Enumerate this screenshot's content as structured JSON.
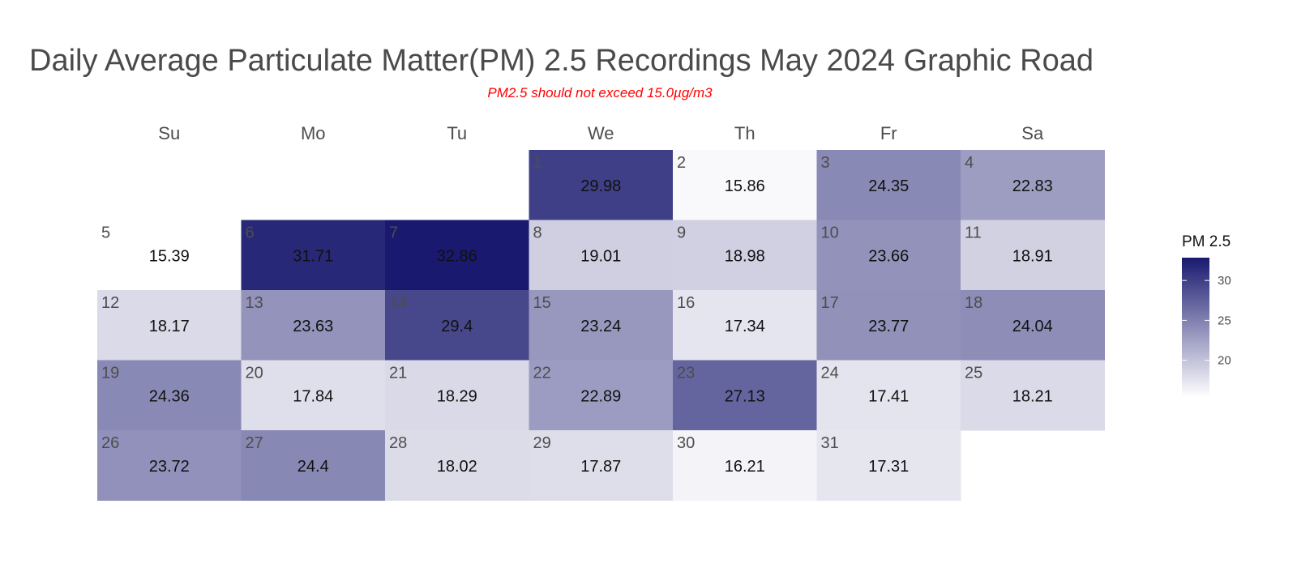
{
  "chart_data": {
    "type": "heatmap",
    "title": "Daily Average Particulate Matter(PM) 2.5 Recordings May 2024 Graphic Road",
    "subtitle": "PM2.5 should not exceed 15.0µg/m3",
    "weekdays": [
      "Su",
      "Mo",
      "Tu",
      "We",
      "Th",
      "Fr",
      "Sa"
    ],
    "first_weekday_index": 3,
    "days": [
      1,
      2,
      3,
      4,
      5,
      6,
      7,
      8,
      9,
      10,
      11,
      12,
      13,
      14,
      15,
      16,
      17,
      18,
      19,
      20,
      21,
      22,
      23,
      24,
      25,
      26,
      27,
      28,
      29,
      30,
      31
    ],
    "values": [
      29.98,
      15.86,
      24.35,
      22.83,
      15.39,
      31.71,
      32.86,
      19.01,
      18.98,
      23.66,
      18.91,
      18.17,
      23.63,
      29.4,
      23.24,
      17.34,
      23.77,
      24.04,
      24.36,
      17.84,
      18.29,
      22.89,
      27.13,
      17.41,
      18.21,
      23.72,
      24.4,
      18.02,
      17.87,
      16.21,
      17.31
    ],
    "value_labels": [
      "29.98",
      "15.86",
      "24.35",
      "22.83",
      "15.39",
      "31.71",
      "32.86",
      "19.01",
      "18.98",
      "23.66",
      "18.91",
      "18.17",
      "23.63",
      "29.4",
      "23.24",
      "17.34",
      "23.77",
      "24.04",
      "24.36",
      "17.84",
      "18.29",
      "22.89",
      "27.13",
      "17.41",
      "18.21",
      "23.72",
      "24.4",
      "18.02",
      "17.87",
      "16.21",
      "17.31"
    ],
    "legend": {
      "title": "PM 2.5",
      "position": "right",
      "ticks": [
        20,
        25,
        30
      ],
      "range": [
        15.39,
        32.86
      ]
    },
    "colors": {
      "low": "#ffffff",
      "high": "#191970"
    }
  }
}
